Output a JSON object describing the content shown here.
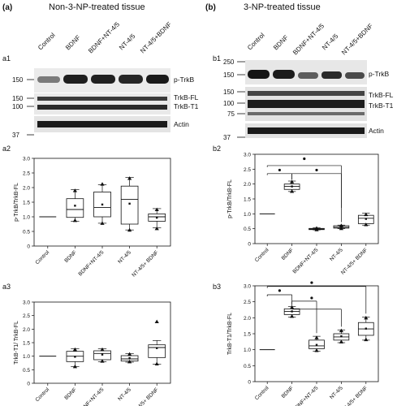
{
  "figure": {
    "panel_a": {
      "letter": "(a)",
      "title": "Non-3-NP-treated tissue",
      "lanes": [
        "Control",
        "BDNF",
        "BDNF+NT-4/5",
        "NT-4/5",
        "NT-4/5+BDNF"
      ],
      "a1": {
        "label": "a1",
        "blots": [
          {
            "mw": [
              "150"
            ],
            "bands": [
              "p-TrkB"
            ]
          },
          {
            "mw": [
              "150",
              "100"
            ],
            "bands": [
              "TrkB-FL",
              "TrkB-T1"
            ]
          },
          {
            "mw": [
              "37"
            ],
            "bands": [
              "Actin"
            ]
          }
        ]
      }
    },
    "panel_b": {
      "letter": "(b)",
      "title": "3-NP-treated tissue",
      "lanes": [
        "Control",
        "BDNF",
        "BDNF+NT-4/5",
        "NT-4/5",
        "NT-4/5+BDNF"
      ],
      "b1": {
        "label": "b1",
        "blots": [
          {
            "mw": [
              "250",
              "150"
            ],
            "bands": [
              "p-TrkB"
            ]
          },
          {
            "mw": [
              "150",
              "100",
              "75"
            ],
            "bands": [
              "TrkB-FL",
              "TrkB-T1"
            ]
          },
          {
            "mw": [
              "37"
            ],
            "bands": [
              "Actin"
            ]
          }
        ]
      }
    }
  },
  "chart_data": [
    {
      "id": "a2",
      "label": "a2",
      "type": "box",
      "ylabel": "p-TrkB/TrkB-FL",
      "ylim": [
        0,
        3.0
      ],
      "yticks": [
        "0",
        "0.5",
        "1.0",
        "1.5",
        "2.0",
        "2.5",
        "3.0"
      ],
      "categories": [
        "Control",
        "BDNF",
        "BDNF+NT-4/5",
        "NT-4/5",
        "NT-4/5+ BDNF"
      ],
      "boxes": [
        {
          "q1": 1.0,
          "median": 1.0,
          "q3": 1.0,
          "min": 1.0,
          "max": 1.0,
          "mean": 1.0,
          "points": []
        },
        {
          "q1": 0.98,
          "median": 1.25,
          "q3": 1.62,
          "min": 0.85,
          "max": 1.93,
          "mean": 1.38,
          "points": [
            0.88,
            1.9
          ]
        },
        {
          "q1": 1.0,
          "median": 1.32,
          "q3": 1.85,
          "min": 0.78,
          "max": 2.1,
          "mean": 1.42,
          "points": [
            0.78,
            2.12
          ]
        },
        {
          "q1": 0.75,
          "median": 1.6,
          "q3": 2.05,
          "min": 0.55,
          "max": 2.35,
          "mean": 1.45,
          "points": [
            0.55,
            2.32
          ]
        },
        {
          "q1": 0.85,
          "median": 1.0,
          "q3": 1.1,
          "min": 0.62,
          "max": 1.28,
          "mean": 0.97,
          "points": [
            0.6,
            1.25
          ]
        }
      ]
    },
    {
      "id": "a3",
      "label": "a3",
      "type": "box",
      "ylabel": "TrkB-T1/ TrkB-FL",
      "ylim": [
        0,
        3.0
      ],
      "yticks": [
        "0",
        "0.5",
        "1.0",
        "1.5",
        "2.0",
        "2.5",
        "3.0"
      ],
      "categories": [
        "Control",
        "BDNF",
        "BDNF+NT-4/5",
        "NT-4/5",
        "NT-4/5+ BDNF"
      ],
      "boxes": [
        {
          "q1": 1.0,
          "median": 1.0,
          "q3": 1.0,
          "min": 1.0,
          "max": 1.0,
          "mean": 1.0,
          "points": []
        },
        {
          "q1": 0.8,
          "median": 1.0,
          "q3": 1.18,
          "min": 0.62,
          "max": 1.28,
          "mean": 0.98,
          "points": [
            0.62,
            1.25
          ]
        },
        {
          "q1": 0.87,
          "median": 1.1,
          "q3": 1.2,
          "min": 0.8,
          "max": 1.28,
          "mean": 1.06,
          "points": [
            0.82,
            1.25
          ]
        },
        {
          "q1": 0.82,
          "median": 0.9,
          "q3": 1.02,
          "min": 0.78,
          "max": 1.1,
          "mean": 0.93,
          "points": [
            0.8,
            1.08
          ]
        },
        {
          "q1": 0.95,
          "median": 1.32,
          "q3": 1.42,
          "min": 0.7,
          "max": 1.58,
          "mean": 1.3,
          "points": [
            0.72,
            2.28
          ]
        }
      ]
    },
    {
      "id": "b2",
      "label": "b2",
      "type": "box",
      "ylabel": "p-TrkB/TrkB-FL",
      "ylim": [
        0,
        3.0
      ],
      "yticks": [
        "0",
        "0.5",
        "1.0",
        "1.5",
        "2.0",
        "2.5",
        "3.0"
      ],
      "categories": [
        "Control",
        "BDNF",
        "BDNF+NT-4/5",
        "NT-4/5",
        "NT-4/5+ BDNF"
      ],
      "boxes": [
        {
          "q1": 1.0,
          "median": 1.0,
          "q3": 1.0,
          "min": 1.0,
          "max": 1.0,
          "mean": 1.0,
          "points": []
        },
        {
          "q1": 1.82,
          "median": 1.92,
          "q3": 2.0,
          "min": 1.75,
          "max": 2.1,
          "mean": 1.92,
          "points": [
            1.76,
            2.08
          ]
        },
        {
          "q1": 0.47,
          "median": 0.49,
          "q3": 0.51,
          "min": 0.46,
          "max": 0.53,
          "mean": 0.49,
          "points": [
            0.47,
            0.52
          ]
        },
        {
          "q1": 0.52,
          "median": 0.55,
          "q3": 0.6,
          "min": 0.5,
          "max": 0.62,
          "mean": 0.56,
          "points": [
            0.51,
            0.61
          ]
        },
        {
          "q1": 0.67,
          "median": 0.85,
          "q3": 0.95,
          "min": 0.62,
          "max": 1.02,
          "mean": 0.83,
          "points": [
            0.64,
            0.98
          ]
        }
      ],
      "significance": [
        {
          "from": 0,
          "to": 1,
          "level": 2.35,
          "drops": [
            2.3,
            2.15
          ]
        },
        {
          "from": 0,
          "to": 3,
          "level": 2.62,
          "drops": [
            2.57,
            0.72
          ]
        },
        {
          "from": 1,
          "to": 3,
          "level": 2.35,
          "drops": [
            2.15,
            1.2
          ]
        }
      ],
      "sig_marks": [
        {
          "x": 0.5,
          "y": 2.47
        },
        {
          "x": 1.5,
          "y": 2.85
        },
        {
          "x": 2.0,
          "y": 2.47
        }
      ]
    },
    {
      "id": "b3",
      "label": "b3",
      "type": "box",
      "ylabel": "TrkB-T1/TrkB-FL",
      "ylim": [
        0,
        3.0
      ],
      "yticks": [
        "0",
        "0.5",
        "1.0",
        "1.5",
        "2.0",
        "2.5",
        "3.0"
      ],
      "categories": [
        "Control",
        "BDNF",
        "BDNF+NT-4/5",
        "NT-4/5",
        "NT-4/5+ BDNF"
      ],
      "boxes": [
        {
          "q1": 1.0,
          "median": 1.0,
          "q3": 1.0,
          "min": 1.0,
          "max": 1.0,
          "mean": 1.0,
          "points": []
        },
        {
          "q1": 2.1,
          "median": 2.2,
          "q3": 2.28,
          "min": 2.02,
          "max": 2.35,
          "mean": 2.2,
          "points": [
            2.05,
            2.33
          ]
        },
        {
          "q1": 1.03,
          "median": 1.12,
          "q3": 1.3,
          "min": 0.95,
          "max": 1.42,
          "mean": 1.15,
          "points": [
            0.98,
            1.38
          ]
        },
        {
          "q1": 1.3,
          "median": 1.4,
          "q3": 1.5,
          "min": 1.22,
          "max": 1.62,
          "mean": 1.42,
          "points": [
            1.25,
            1.6
          ]
        },
        {
          "q1": 1.45,
          "median": 1.65,
          "q3": 1.85,
          "min": 1.3,
          "max": 2.02,
          "mean": 1.66,
          "points": [
            1.32,
            2.0
          ]
        }
      ],
      "significance": [
        {
          "from": 0,
          "to": 1,
          "level": 2.72,
          "drops": [
            2.67,
            2.42
          ]
        },
        {
          "from": 0,
          "to": 4,
          "level": 2.98,
          "drops": [
            2.93,
            2.13
          ]
        },
        {
          "from": 1,
          "to": 2,
          "level": 2.52,
          "drops": [
            2.42,
            1.52
          ]
        },
        {
          "from": 1,
          "to": 3,
          "level": 2.27,
          "drops": [
            2.42,
            1.72
          ]
        }
      ],
      "sig_marks": [
        {
          "x": 0.5,
          "y": 2.85
        },
        {
          "x": 1.8,
          "y": 3.1
        },
        {
          "x": 1.8,
          "y": 2.62
        }
      ]
    }
  ]
}
